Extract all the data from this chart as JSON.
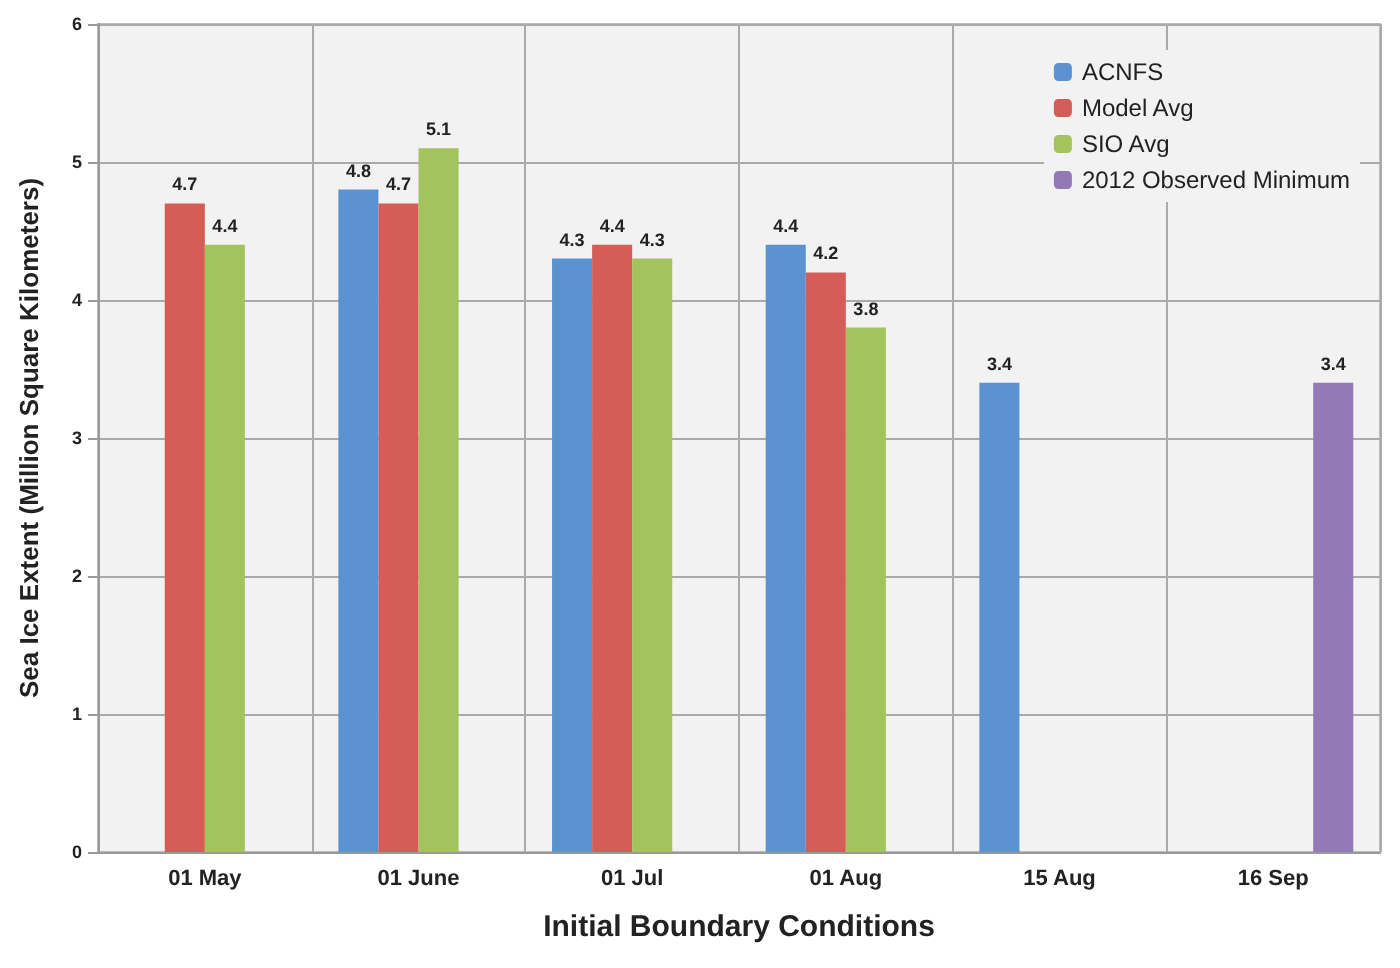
{
  "chart_data": {
    "type": "bar",
    "xlabel": "Initial Boundary Conditions",
    "ylabel": "Sea Ice Extent (Million Square Kilometers)",
    "categories": [
      "01 May",
      "01 June",
      "01 Jul",
      "01 Aug",
      "15 Aug",
      "16 Sep"
    ],
    "series": [
      {
        "name": "ACNFS",
        "color": "#5b93d0",
        "values": [
          null,
          4.8,
          4.3,
          4.4,
          3.4,
          null
        ]
      },
      {
        "name": "Model Avg",
        "color": "#d45d58",
        "values": [
          4.7,
          4.7,
          4.4,
          4.2,
          null,
          null
        ]
      },
      {
        "name": "SIO Avg",
        "color": "#a3c35c",
        "values": [
          4.4,
          5.1,
          4.3,
          3.8,
          null,
          null
        ]
      },
      {
        "name": "2012 Observed Minimum",
        "color": "#9379b5",
        "values": [
          null,
          null,
          null,
          null,
          null,
          3.4
        ]
      }
    ],
    "ylim": [
      0,
      6
    ],
    "yticks": [
      0,
      1,
      2,
      3,
      4,
      5,
      6
    ],
    "grid": true,
    "legend": "top right",
    "data_labels": true
  }
}
